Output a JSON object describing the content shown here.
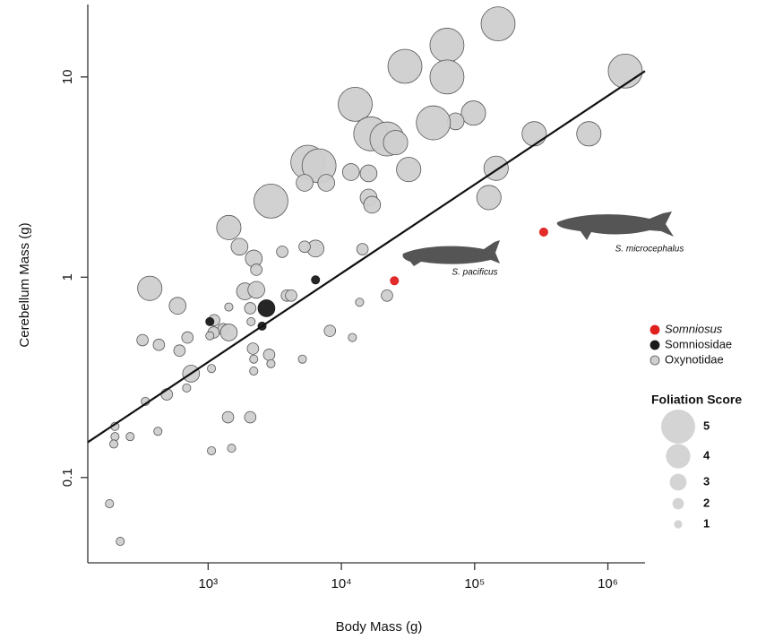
{
  "chart_data": {
    "type": "scatter",
    "x_label": "Body Mass (g)",
    "y_label": "Cerebellum Mass (g)",
    "log_x": true,
    "log_y": true,
    "xlim": [
      125,
      1900000
    ],
    "ylim": [
      0.0375,
      23
    ],
    "xticks": [
      {
        "value": 1000,
        "label": "10³"
      },
      {
        "value": 10000,
        "label": "10⁴"
      },
      {
        "value": 100000,
        "label": "10⁵"
      },
      {
        "value": 1000000,
        "label": "10⁶"
      }
    ],
    "yticks": [
      0.1,
      1,
      10
    ],
    "series": [
      {
        "name": "Somniosus",
        "color": "#e0201f",
        "x": [
          25000,
          330000
        ],
        "y": [
          0.96,
          1.68
        ],
        "size": [
          1,
          1
        ]
      },
      {
        "name": "Somniosidae",
        "color": "#1a1a1a",
        "x": [
          1030,
          2740,
          2540,
          6400
        ],
        "y": [
          0.6,
          0.7,
          0.57,
          0.97
        ],
        "size": [
          1,
          3,
          1,
          1
        ]
      },
      {
        "name": "Oxynotidae",
        "color": "#cfcfcf",
        "x": [
          150000,
          62000,
          30000,
          62000,
          1350000,
          12700,
          98000,
          72000,
          49000,
          16600,
          22000,
          25500,
          280000,
          720000,
          5600,
          6800,
          7700,
          5300,
          11800,
          16000,
          32000,
          145000,
          16000,
          17000,
          128000,
          2960,
          1430,
          1720,
          2200,
          3600,
          6400,
          5300,
          14400,
          2300,
          365,
          590,
          1890,
          2300,
          3900,
          4200,
          2070,
          1430,
          22000,
          13700,
          2100,
          1110,
          1300,
          1100,
          1430,
          1030,
          700,
          322,
          427,
          610,
          8200,
          12100,
          745,
          1060,
          2170,
          2870,
          2200,
          2960,
          5100,
          2200,
          690,
          490,
          338,
          1410,
          2070,
          200,
          420,
          260,
          200,
          196,
          1060,
          1500,
          182,
          219
        ],
        "y": [
          18.4,
          14.4,
          11.3,
          10,
          10.7,
          7.3,
          6.6,
          6.0,
          5.9,
          5.2,
          4.9,
          4.7,
          5.2,
          5.2,
          3.75,
          3.6,
          2.96,
          2.96,
          3.35,
          3.3,
          3.45,
          3.5,
          2.5,
          2.3,
          2.5,
          2.4,
          1.77,
          1.42,
          1.24,
          1.34,
          1.39,
          1.42,
          1.38,
          1.09,
          0.88,
          0.72,
          0.85,
          0.865,
          0.81,
          0.81,
          0.7,
          0.71,
          0.81,
          0.75,
          0.6,
          0.61,
          0.55,
          0.53,
          0.53,
          0.51,
          0.5,
          0.485,
          0.46,
          0.43,
          0.54,
          0.5,
          0.33,
          0.35,
          0.44,
          0.41,
          0.39,
          0.37,
          0.39,
          0.34,
          0.28,
          0.26,
          0.24,
          0.2,
          0.2,
          0.18,
          0.17,
          0.16,
          0.16,
          0.147,
          0.136,
          0.14,
          0.074,
          0.048
        ],
        "size": [
          5,
          5,
          5,
          5,
          5,
          5,
          4,
          3,
          5,
          5,
          5,
          4,
          4,
          4,
          5,
          5,
          3,
          3,
          3,
          3,
          4,
          4,
          3,
          3,
          4,
          5,
          4,
          3,
          3,
          2,
          3,
          2,
          2,
          2,
          4,
          3,
          3,
          3,
          2,
          2,
          2,
          1,
          2,
          1,
          1,
          2,
          2,
          2,
          3,
          1,
          2,
          2,
          2,
          2,
          2,
          1,
          3,
          1,
          2,
          2,
          1,
          1,
          1,
          1,
          1,
          2,
          1,
          2,
          2,
          1,
          1,
          1,
          1,
          1,
          1,
          1,
          1,
          1
        ]
      }
    ],
    "fit_line": {
      "x": [
        125,
        1900000
      ],
      "y": [
        0.15,
        10.7
      ],
      "color": "#111111"
    },
    "size_legend": {
      "title": "Foliation Score",
      "values": [
        5,
        4,
        3,
        2,
        1
      ]
    },
    "annotations": [
      "S. pacificus",
      "S. microcephalus"
    ]
  }
}
